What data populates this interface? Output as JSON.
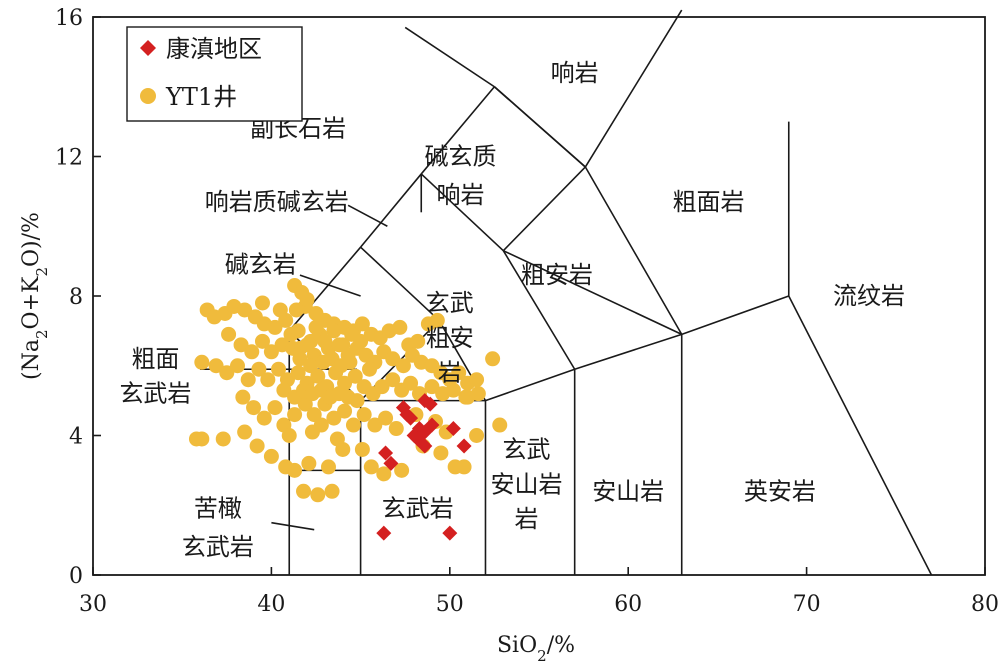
{
  "chart_data": {
    "type": "scatter",
    "xlabel": "SiO2/%",
    "ylabel": "(Na2O+K2O)/%",
    "xlim": [
      30,
      80
    ],
    "ylim": [
      0,
      16
    ],
    "xticks": [
      "30",
      "40",
      "50",
      "60",
      "70",
      "80"
    ],
    "yticks": [
      "0",
      "4",
      "8",
      "12",
      "16"
    ],
    "legend": {
      "placement": "top-left",
      "entries": [
        {
          "label": "康滇地区",
          "marker": "diamond",
          "color": "#d42020"
        },
        {
          "label": "YT1井",
          "marker": "circle",
          "color": "#f0bb3c"
        }
      ]
    },
    "field_labels": [
      {
        "text": "响岩",
        "x": 57.0,
        "y": 14.4
      },
      {
        "text": "副长石岩",
        "x": 41.5,
        "y": 12.8
      },
      {
        "text": "碱玄质",
        "x": 50.6,
        "y": 12.0
      },
      {
        "text": "响岩",
        "x": 50.6,
        "y": 10.9
      },
      {
        "text": "粗面岩",
        "x": 64.5,
        "y": 10.7
      },
      {
        "text": "响岩质碱玄岩",
        "x": 40.3,
        "y": 10.7
      },
      {
        "text": "碱玄岩",
        "x": 39.4,
        "y": 8.9
      },
      {
        "text": "粗安岩",
        "x": 56.0,
        "y": 8.6
      },
      {
        "text": "流纹岩",
        "x": 73.5,
        "y": 8.0
      },
      {
        "text": "玄武",
        "x": 50.0,
        "y": 7.8
      },
      {
        "text": "粗安",
        "x": 50.0,
        "y": 6.8
      },
      {
        "text": "岩",
        "x": 50.0,
        "y": 5.8
      },
      {
        "text": "粗面",
        "x": 33.5,
        "y": 6.2
      },
      {
        "text": "玄武岩",
        "x": 33.5,
        "y": 5.2
      },
      {
        "text": "玄武",
        "x": 54.3,
        "y": 3.6
      },
      {
        "text": "安山岩",
        "x": 54.3,
        "y": 2.6
      },
      {
        "text": "岩",
        "x": 54.3,
        "y": 1.6
      },
      {
        "text": "安山岩",
        "x": 60.0,
        "y": 2.4
      },
      {
        "text": "英安岩",
        "x": 68.5,
        "y": 2.4
      },
      {
        "text": "玄武岩",
        "x": 48.2,
        "y": 1.9
      },
      {
        "text": "苦橄",
        "x": 37.0,
        "y": 1.9
      },
      {
        "text": "玄武岩",
        "x": 37.0,
        "y": 0.8
      }
    ],
    "series": [
      {
        "name": "康滇地区",
        "marker": "diamond",
        "color": "#d42020",
        "points": [
          [
            47.4,
            4.8
          ],
          [
            47.6,
            4.6
          ],
          [
            48.3,
            4.2
          ],
          [
            48.6,
            5.0
          ],
          [
            48.9,
            4.9
          ],
          [
            49.0,
            4.3
          ],
          [
            48.2,
            3.9
          ],
          [
            47.8,
            4.5
          ],
          [
            48.6,
            3.7
          ],
          [
            48.0,
            4.0
          ],
          [
            50.2,
            4.2
          ],
          [
            50.8,
            3.7
          ],
          [
            46.4,
            3.5
          ],
          [
            46.7,
            3.2
          ],
          [
            48.6,
            4.1
          ],
          [
            46.3,
            1.2
          ],
          [
            50.0,
            1.2
          ]
        ]
      },
      {
        "name": "YT1井",
        "marker": "circle",
        "color": "#f0bb3c",
        "points": [
          [
            35.8,
            3.9
          ],
          [
            36.1,
            3.9
          ],
          [
            37.3,
            3.9
          ],
          [
            38.5,
            4.1
          ],
          [
            39.2,
            3.7
          ],
          [
            40.0,
            3.4
          ],
          [
            40.8,
            3.1
          ],
          [
            41.3,
            3.0
          ],
          [
            42.1,
            3.2
          ],
          [
            43.2,
            3.1
          ],
          [
            44.0,
            3.6
          ],
          [
            45.1,
            3.6
          ],
          [
            45.6,
            3.1
          ],
          [
            41.8,
            2.4
          ],
          [
            42.6,
            2.3
          ],
          [
            43.4,
            2.4
          ],
          [
            46.3,
            2.9
          ],
          [
            47.3,
            3.0
          ],
          [
            48.5,
            3.7
          ],
          [
            49.5,
            3.5
          ],
          [
            50.3,
            3.1
          ],
          [
            50.8,
            3.1
          ],
          [
            51.5,
            4.0
          ],
          [
            52.8,
            4.3
          ],
          [
            51.0,
            5.1
          ],
          [
            36.1,
            6.1
          ],
          [
            36.4,
            7.6
          ],
          [
            36.8,
            7.4
          ],
          [
            37.4,
            7.5
          ],
          [
            37.9,
            7.7
          ],
          [
            38.5,
            7.6
          ],
          [
            39.1,
            7.4
          ],
          [
            39.6,
            7.2
          ],
          [
            40.2,
            7.1
          ],
          [
            40.8,
            7.3
          ],
          [
            41.4,
            7.6
          ],
          [
            41.9,
            7.7
          ],
          [
            42.5,
            7.5
          ],
          [
            43.0,
            7.3
          ],
          [
            43.5,
            7.2
          ],
          [
            44.1,
            7.1
          ],
          [
            44.6,
            7.0
          ],
          [
            45.1,
            7.2
          ],
          [
            45.6,
            6.9
          ],
          [
            46.1,
            6.8
          ],
          [
            46.6,
            7.0
          ],
          [
            47.2,
            7.1
          ],
          [
            47.7,
            6.6
          ],
          [
            48.2,
            6.7
          ],
          [
            48.8,
            7.2
          ],
          [
            49.3,
            7.3
          ],
          [
            37.6,
            6.9
          ],
          [
            38.3,
            6.6
          ],
          [
            38.9,
            6.4
          ],
          [
            39.5,
            6.7
          ],
          [
            40.0,
            6.4
          ],
          [
            40.6,
            6.6
          ],
          [
            41.1,
            6.9
          ],
          [
            41.6,
            6.5
          ],
          [
            42.2,
            6.7
          ],
          [
            42.7,
            6.9
          ],
          [
            43.2,
            6.5
          ],
          [
            43.8,
            6.6
          ],
          [
            44.3,
            6.3
          ],
          [
            44.8,
            6.5
          ],
          [
            45.3,
            6.3
          ],
          [
            45.8,
            6.1
          ],
          [
            46.3,
            6.4
          ],
          [
            46.8,
            6.2
          ],
          [
            47.4,
            6.0
          ],
          [
            47.9,
            6.3
          ],
          [
            48.4,
            6.1
          ],
          [
            49.0,
            6.0
          ],
          [
            49.5,
            5.8
          ],
          [
            50.0,
            5.6
          ],
          [
            50.5,
            5.8
          ],
          [
            51.0,
            5.5
          ],
          [
            51.5,
            5.6
          ],
          [
            52.4,
            6.2
          ],
          [
            36.9,
            6.0
          ],
          [
            37.5,
            5.8
          ],
          [
            38.1,
            6.0
          ],
          [
            38.7,
            5.6
          ],
          [
            39.3,
            5.9
          ],
          [
            39.8,
            5.6
          ],
          [
            40.4,
            5.9
          ],
          [
            40.9,
            5.6
          ],
          [
            41.5,
            5.8
          ],
          [
            42.0,
            5.5
          ],
          [
            42.6,
            5.7
          ],
          [
            43.1,
            5.4
          ],
          [
            43.6,
            5.8
          ],
          [
            44.1,
            5.5
          ],
          [
            44.7,
            5.7
          ],
          [
            45.2,
            5.4
          ],
          [
            45.7,
            5.2
          ],
          [
            46.2,
            5.4
          ],
          [
            46.8,
            5.6
          ],
          [
            47.3,
            5.3
          ],
          [
            47.8,
            5.5
          ],
          [
            48.3,
            5.2
          ],
          [
            49.0,
            5.4
          ],
          [
            49.6,
            5.2
          ],
          [
            50.2,
            5.3
          ],
          [
            50.9,
            5.1
          ],
          [
            51.6,
            5.2
          ],
          [
            38.4,
            5.1
          ],
          [
            39.0,
            4.8
          ],
          [
            39.6,
            4.5
          ],
          [
            40.2,
            4.8
          ],
          [
            40.7,
            4.3
          ],
          [
            41.3,
            4.6
          ],
          [
            41.9,
            4.9
          ],
          [
            42.4,
            4.6
          ],
          [
            43.0,
            4.9
          ],
          [
            43.5,
            4.5
          ],
          [
            44.1,
            4.7
          ],
          [
            44.6,
            4.3
          ],
          [
            45.2,
            4.6
          ],
          [
            45.8,
            4.3
          ],
          [
            46.4,
            4.5
          ],
          [
            47.0,
            4.2
          ],
          [
            48.1,
            4.6
          ],
          [
            49.2,
            4.4
          ],
          [
            49.8,
            4.1
          ],
          [
            41.0,
            4.0
          ],
          [
            42.3,
            4.1
          ],
          [
            43.7,
            3.9
          ],
          [
            41.3,
            8.3
          ],
          [
            41.7,
            8.1
          ],
          [
            42.0,
            7.9
          ],
          [
            42.4,
            6.3
          ],
          [
            42.9,
            6.1
          ],
          [
            43.4,
            6.2
          ],
          [
            43.9,
            6.0
          ],
          [
            44.4,
            6.1
          ],
          [
            41.6,
            6.2
          ],
          [
            42.2,
            6.0
          ],
          [
            40.7,
            5.3
          ],
          [
            41.3,
            5.1
          ],
          [
            41.8,
            5.3
          ],
          [
            42.3,
            5.2
          ],
          [
            42.8,
            5.3
          ],
          [
            43.3,
            5.1
          ],
          [
            43.8,
            5.2
          ],
          [
            44.3,
            5.1
          ],
          [
            41.2,
            6.5
          ],
          [
            42.0,
            6.6
          ],
          [
            43.0,
            6.7
          ],
          [
            44.0,
            6.6
          ],
          [
            45.0,
            6.7
          ],
          [
            41.5,
            7.0
          ],
          [
            42.5,
            7.1
          ],
          [
            43.5,
            7.0
          ],
          [
            44.5,
            6.9
          ],
          [
            42.8,
            4.3
          ],
          [
            44.8,
            5.0
          ],
          [
            45.5,
            5.9
          ],
          [
            39.5,
            7.8
          ],
          [
            40.5,
            7.6
          ]
        ]
      }
    ]
  }
}
